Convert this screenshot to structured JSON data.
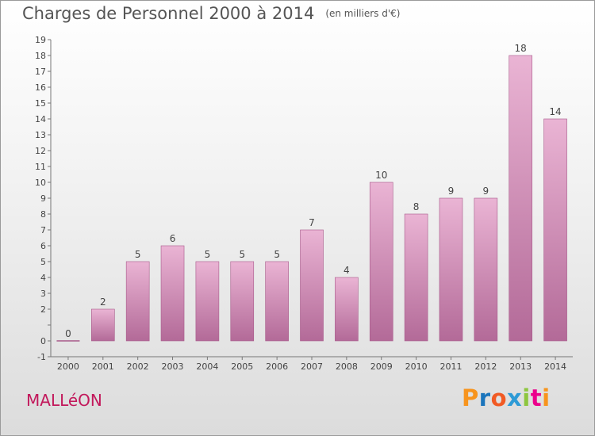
{
  "header": {
    "title": "Charges de Personnel 2000 à 2014",
    "unit_note": "(en milliers d'€)"
  },
  "footer": {
    "commune": "MALLéON"
  },
  "brand": {
    "letters": [
      "P",
      "r",
      "o",
      "x",
      "i",
      "t",
      "i"
    ],
    "colors": [
      "#f7941d",
      "#1b75bc",
      "#f15a24",
      "#2e9bd6",
      "#8dc63f",
      "#ec008c",
      "#f7941d"
    ]
  },
  "colors": {
    "bar_light": "#eab4d4",
    "bar_dark": "#b36a98",
    "bar_edge": "#a8598a"
  },
  "chart_data": {
    "type": "bar",
    "categories": [
      "2000",
      "2001",
      "2002",
      "2003",
      "2004",
      "2005",
      "2006",
      "2007",
      "2008",
      "2009",
      "2010",
      "2011",
      "2012",
      "2013",
      "2014"
    ],
    "values": [
      0,
      2,
      5,
      6,
      5,
      5,
      5,
      7,
      4,
      10,
      8,
      9,
      9,
      18,
      14
    ],
    "data_labels": [
      "0",
      "2",
      "5",
      "6",
      "5",
      "5",
      "5",
      "7",
      "4",
      "10",
      "8",
      "9",
      "9",
      "18",
      "14"
    ],
    "y_ticks": [
      -1,
      0,
      1,
      2,
      3,
      4,
      5,
      6,
      7,
      8,
      9,
      10,
      11,
      12,
      13,
      14,
      15,
      16,
      17,
      18,
      19
    ],
    "y_tick_labels": [
      "-1",
      "0",
      "",
      "2",
      "3",
      "4",
      "5",
      "6",
      "7",
      "8",
      "9",
      "10",
      "11",
      "12",
      "13",
      "14",
      "15",
      "16",
      "17",
      "18",
      "19"
    ],
    "ylim": [
      -1,
      19
    ],
    "grid": false
  }
}
